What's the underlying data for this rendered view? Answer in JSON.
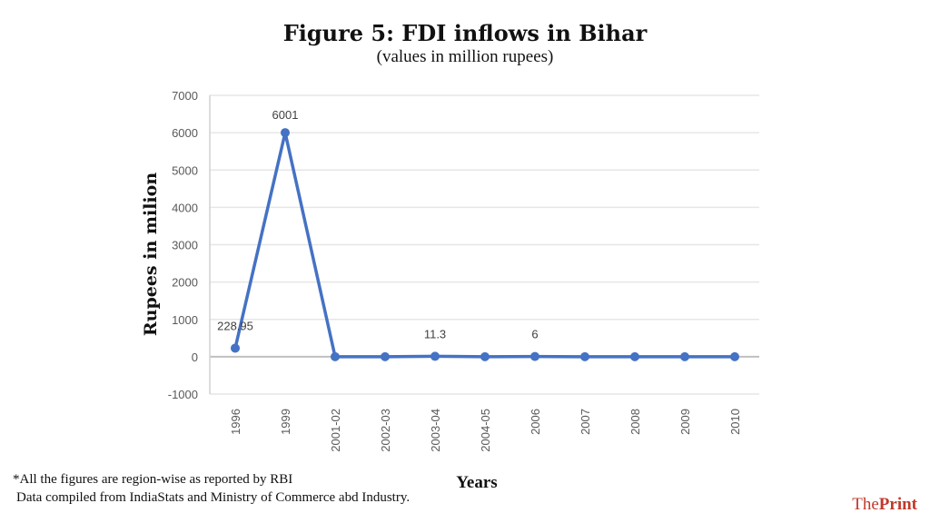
{
  "chart_data": {
    "type": "line",
    "title": "Figure 5: FDI inflows in Bihar",
    "subtitle": "(values in million rupees)",
    "xlabel": "Years",
    "ylabel": "Rupees in milion",
    "categories": [
      "1996",
      "1999",
      "2001-02",
      "2002-03",
      "2003-04",
      "2004-05",
      "2006",
      "2007",
      "2008",
      "2009",
      "2010"
    ],
    "series": [
      {
        "name": "FDI inflows",
        "values": [
          228.95,
          6001,
          0,
          0,
          11.3,
          0,
          6,
          0,
          0,
          0,
          0
        ],
        "color": "#4472c4"
      }
    ],
    "data_labels": [
      "228.95",
      "6001",
      "",
      "",
      "11.3",
      "",
      "6",
      "",
      "",
      "",
      ""
    ],
    "ylim": [
      -1000,
      7000
    ],
    "yticks": [
      -1000,
      0,
      1000,
      2000,
      3000,
      4000,
      5000,
      6000,
      7000
    ],
    "grid": true
  },
  "footnotes": [
    "*All the figures are region-wise as reported by RBI",
    "Data compiled from IndiaStats and Ministry of Commerce abd Industry."
  ],
  "logo": {
    "part1": "The",
    "part2": "Print"
  }
}
